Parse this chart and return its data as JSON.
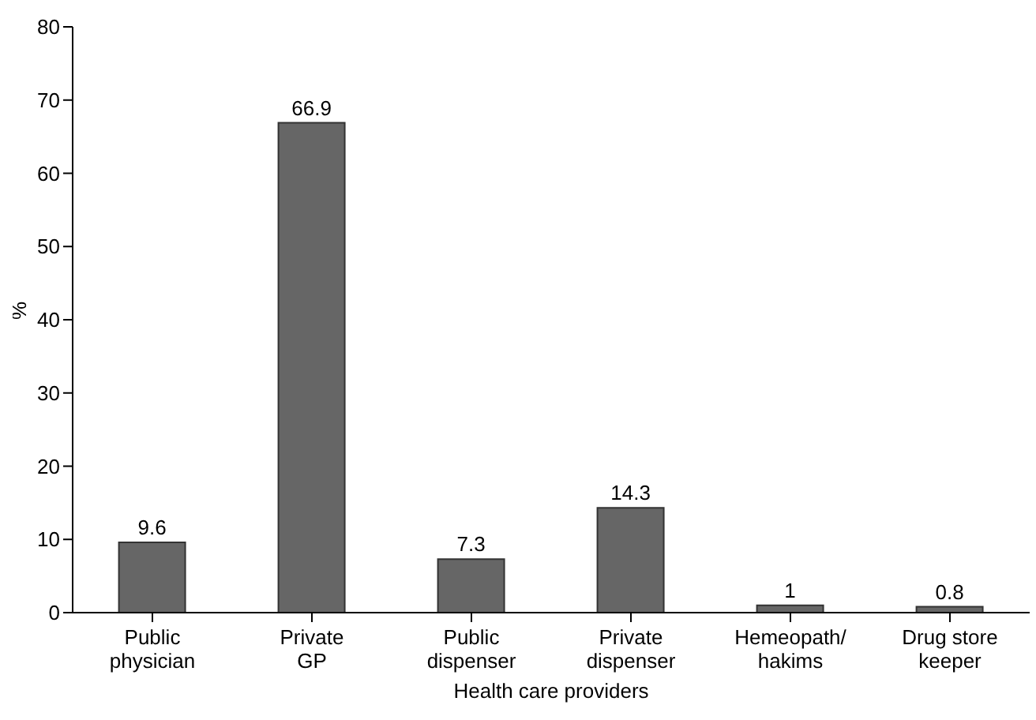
{
  "chart_data": {
    "type": "bar",
    "xlabel": "Health care providers",
    "ylabel": "%",
    "categories": [
      "Public\nphysician",
      "Private\nGP",
      "Public\ndispenser",
      "Private\ndispenser",
      "Hemeopath/\nhakims",
      "Drug store\nkeeper"
    ],
    "values": [
      9.6,
      66.9,
      7.3,
      14.3,
      1,
      0.8
    ],
    "color": "#666666",
    "ylim": [
      0,
      80
    ],
    "yticks": [
      0,
      10,
      20,
      30,
      40,
      50,
      60,
      70,
      80
    ],
    "data_labels": true,
    "grid": false,
    "legend": false
  }
}
